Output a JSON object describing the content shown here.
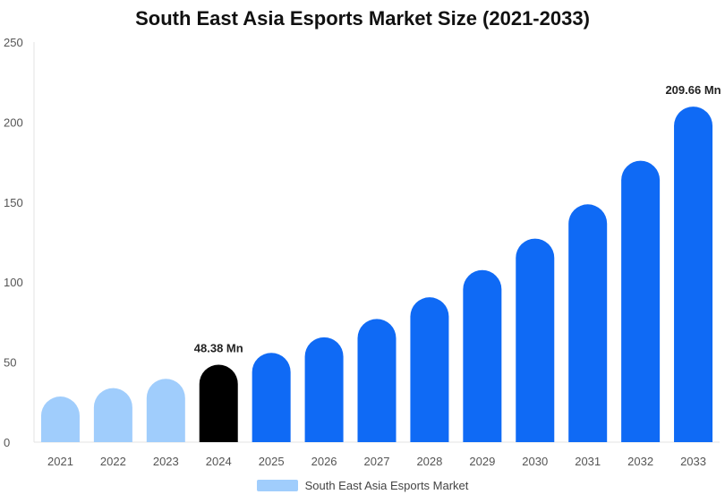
{
  "chart_data": {
    "type": "bar",
    "title": "South East Asia Esports Market Size (2021-2033)",
    "xlabel": "",
    "ylabel": "",
    "ylim": [
      0,
      250
    ],
    "yticks": [
      0,
      50,
      100,
      150,
      200,
      250
    ],
    "grid": false,
    "legend_position": "bottom-center",
    "categories": [
      "2021",
      "2022",
      "2023",
      "2024",
      "2025",
      "2026",
      "2027",
      "2028",
      "2029",
      "2030",
      "2031",
      "2032",
      "2033"
    ],
    "series": [
      {
        "name": "South East Asia Esports Market",
        "values": [
          28.5,
          33.8,
          39.6,
          48.38,
          55.8,
          65.5,
          77.0,
          90.5,
          107.5,
          127.2,
          148.6,
          175.8,
          209.66
        ]
      }
    ],
    "data_labels": [
      {
        "category": "2024",
        "text": "48.38 Mn"
      },
      {
        "category": "2033",
        "text": "209.66 Mn"
      }
    ],
    "colors": {
      "historical": "#a0cdfc",
      "current": "#000000",
      "forecast": "#0f6af5"
    },
    "legend_color": "#a0cdfc"
  }
}
